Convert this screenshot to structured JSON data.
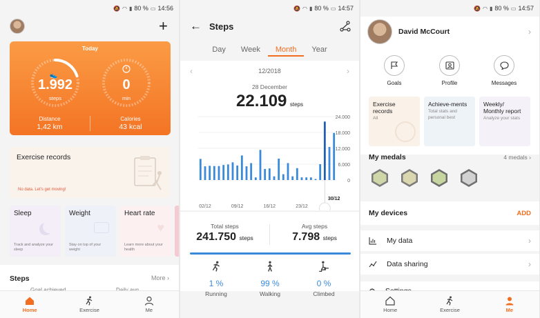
{
  "status": {
    "battery": "80 %",
    "time1": "14:56",
    "time2": "14:57",
    "time3": "14:57"
  },
  "home": {
    "today_label": "Today",
    "steps_value": "1.992",
    "steps_unit": "steps",
    "steps_progress": 0.2,
    "min_value": "0",
    "min_unit": "min",
    "distance_label": "Distance",
    "distance_value": "1,42",
    "distance_unit": "km",
    "calories_label": "Calories",
    "calories_value": "43",
    "calories_unit": "kcal",
    "exercise_records_title": "Exercise records",
    "exercise_records_note": "No data. Let's get moving!",
    "cards": [
      {
        "title": "Sleep",
        "desc": "Track and analyze your sleep"
      },
      {
        "title": "Weight",
        "desc": "Stay on top of your weight"
      },
      {
        "title": "Heart rate",
        "desc": "Learn more about your health"
      }
    ],
    "steps_section": "Steps",
    "more_label": "More",
    "goal_achieved": "Goal achieved",
    "daily_avg": "Daily avg."
  },
  "steps_screen": {
    "title": "Steps",
    "tabs": [
      "Day",
      "Week",
      "Month",
      "Year"
    ],
    "active_tab": "Month",
    "period": "12/2018",
    "selected_date": "28 December",
    "selected_value": "22.109",
    "selected_unit": "steps",
    "total_label": "Total steps",
    "total_value": "241.750",
    "total_unit": "steps",
    "avg_label": "Avg steps",
    "avg_value": "7.798",
    "avg_unit": "steps",
    "activities": [
      {
        "pct": "1 %",
        "label": "Running"
      },
      {
        "pct": "99 %",
        "label": "Walking"
      },
      {
        "pct": "0 %",
        "label": "Climbed"
      }
    ]
  },
  "chart_data": {
    "type": "bar",
    "x": [
      1,
      2,
      3,
      4,
      5,
      6,
      7,
      8,
      9,
      10,
      11,
      12,
      13,
      14,
      15,
      16,
      17,
      18,
      19,
      20,
      21,
      22,
      23,
      24,
      25,
      26,
      27,
      28,
      29,
      30
    ],
    "values": [
      8000,
      5200,
      5400,
      5300,
      5300,
      5700,
      5900,
      6700,
      5500,
      9300,
      5200,
      6400,
      1000,
      11400,
      4200,
      4400,
      1400,
      8100,
      2200,
      6400,
      1400,
      4500,
      1000,
      1000,
      1000,
      400,
      6000,
      22109,
      12500,
      17800
    ],
    "selected_index": 27,
    "x_tick_labels": [
      "02/12",
      "09/12",
      "16/12",
      "23/12",
      "30/12"
    ],
    "y_tick_labels": [
      "24.000",
      "18.000",
      "12.000",
      "6.000",
      "0"
    ],
    "ylim": [
      0,
      24000
    ],
    "bar_color": "#3b8ad9",
    "selected_color": "#1e5fb0"
  },
  "me": {
    "name": "David McCourt",
    "quick": [
      {
        "label": "Goals",
        "icon": "flag-icon"
      },
      {
        "label": "Profile",
        "icon": "profile-card-icon"
      },
      {
        "label": "Messages",
        "icon": "chat-bubble-icon"
      }
    ],
    "tiles": [
      {
        "title": "Exercise records",
        "desc": "All"
      },
      {
        "title": "Achieve-ments",
        "desc": "Total stats and personal best"
      },
      {
        "title": "Weekly/ Monthly report",
        "desc": "Analyze your stats"
      }
    ],
    "medals_title": "My medals",
    "medals_count": "4 medals",
    "devices_title": "My devices",
    "devices_add": "ADD",
    "my_data": "My data",
    "data_sharing": "Data sharing",
    "settings": "Settings"
  },
  "nav": {
    "home": "Home",
    "exercise": "Exercise",
    "me": "Me"
  },
  "colors": {
    "accent": "#f26d1f",
    "chart": "#3b8ad9"
  }
}
